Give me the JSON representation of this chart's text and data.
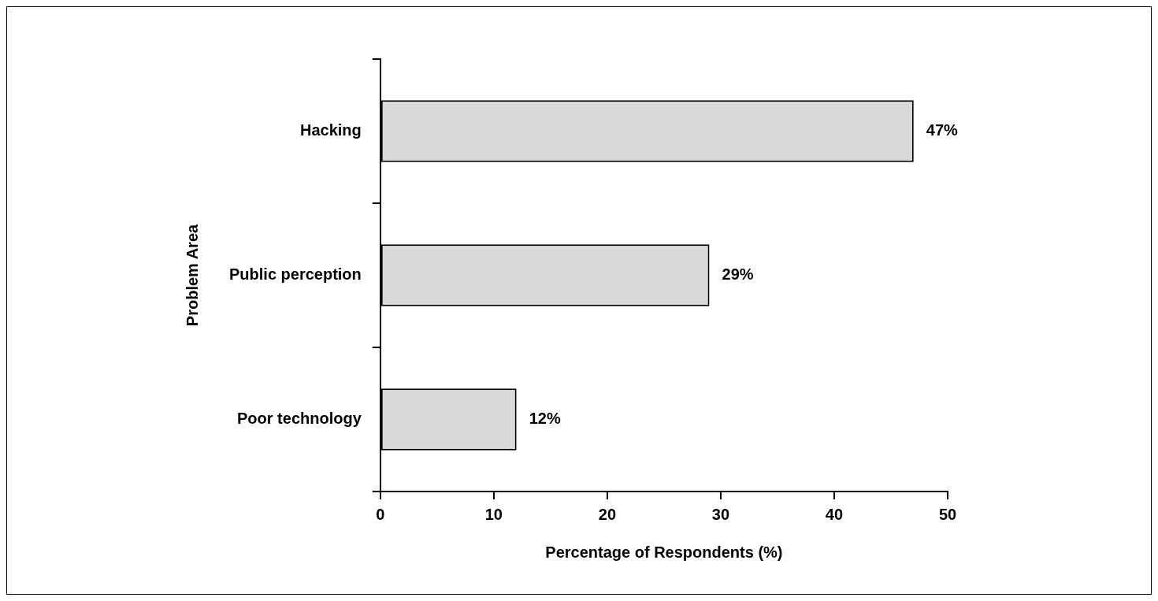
{
  "chart_data": {
    "type": "bar",
    "orientation": "horizontal",
    "categories": [
      "Hacking",
      "Public perception",
      "Poor technology"
    ],
    "values": [
      47,
      29,
      12
    ],
    "value_labels": [
      "47%",
      "29%",
      "12%"
    ],
    "color": "#d9d9d9",
    "xlim": [
      0,
      50
    ],
    "xticks": [
      0,
      10,
      20,
      30,
      40,
      50
    ],
    "xlabel": "Percentage of Respondents (%)",
    "ylabel": "Problem Area"
  }
}
